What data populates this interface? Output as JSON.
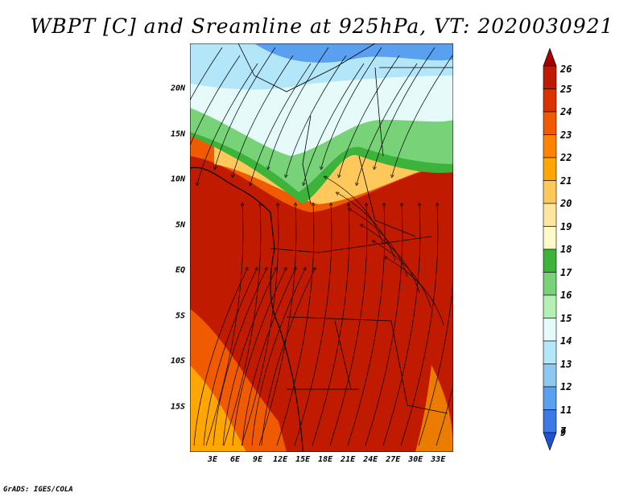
{
  "title": "WBPT [C] and Sreamline at 925hPa, VT: 2020030921",
  "credit": "GrADS: IGES/COLA",
  "map": {
    "lat_range": [
      -20,
      25
    ],
    "lon_range": [
      0,
      35
    ],
    "lat_labels": [
      {
        "text": "20N",
        "lat": 20
      },
      {
        "text": "15N",
        "lat": 15
      },
      {
        "text": "10N",
        "lat": 10
      },
      {
        "text": "5N",
        "lat": 5
      },
      {
        "text": "EQ",
        "lat": 0
      },
      {
        "text": "5S",
        "lat": -5
      },
      {
        "text": "10S",
        "lat": -10
      },
      {
        "text": "15S",
        "lat": -15
      }
    ],
    "lon_labels": [
      {
        "text": "3E",
        "lon": 3
      },
      {
        "text": "6E",
        "lon": 6
      },
      {
        "text": "9E",
        "lon": 9
      },
      {
        "text": "12E",
        "lon": 12
      },
      {
        "text": "15E",
        "lon": 15
      },
      {
        "text": "18E",
        "lon": 18
      },
      {
        "text": "21E",
        "lon": 21
      },
      {
        "text": "24E",
        "lon": 24
      },
      {
        "text": "27E",
        "lon": 27
      },
      {
        "text": "30E",
        "lon": 30
      },
      {
        "text": "33E",
        "lon": 33
      }
    ]
  },
  "colorbar": {
    "levels": [
      {
        "label": "26",
        "color": "#a50000"
      },
      {
        "label": "25",
        "color": "#c01a00"
      },
      {
        "label": "24",
        "color": "#dc3200"
      },
      {
        "label": "23",
        "color": "#f05a00"
      },
      {
        "label": "22",
        "color": "#ff8200"
      },
      {
        "label": "21",
        "color": "#ffa600"
      },
      {
        "label": "20",
        "color": "#ffc85a"
      },
      {
        "label": "19",
        "color": "#ffe6a0"
      },
      {
        "label": "18",
        "color": "#fffac8"
      },
      {
        "label": "17",
        "color": "#3cb43c"
      },
      {
        "label": "16",
        "color": "#78d278"
      },
      {
        "label": "15",
        "color": "#b4f0b4"
      },
      {
        "label": "14",
        "color": "#e6fafa"
      },
      {
        "label": "13",
        "color": "#b4e6fa"
      },
      {
        "label": "12",
        "color": "#8cc8f0"
      },
      {
        "label": "11",
        "color": "#5aa0f0"
      },
      {
        "label": "9",
        "color": "#3c78e6"
      },
      {
        "label": "7",
        "color": "#1e50d2"
      }
    ]
  }
}
